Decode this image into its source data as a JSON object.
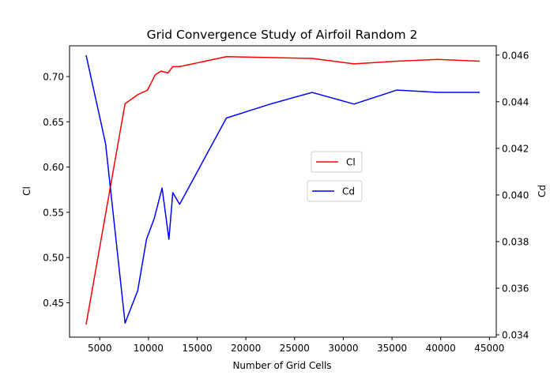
{
  "chart_data": {
    "type": "line",
    "title": "Grid Convergence Study of Airfoil Random 2",
    "xlabel": "Number of Grid Cells",
    "ylabel_left": "Cl",
    "ylabel_right": "Cd",
    "xlim": [
      1900,
      45700
    ],
    "ylim_left": [
      0.412,
      0.734
    ],
    "ylim_right": [
      0.0339,
      0.0464
    ],
    "x_ticks": [
      5000,
      10000,
      15000,
      20000,
      25000,
      30000,
      35000,
      40000,
      45000
    ],
    "y_ticks_left": [
      0.45,
      0.5,
      0.55,
      0.6,
      0.65,
      0.7
    ],
    "y_ticks_right": [
      0.034,
      0.036,
      0.038,
      0.04,
      0.042,
      0.044,
      0.046
    ],
    "grid": false,
    "series": [
      {
        "name": "Cl",
        "axis": "left",
        "color": "#ff0000",
        "points": [
          [
            3600,
            0.426
          ],
          [
            7600,
            0.67
          ],
          [
            8900,
            0.68
          ],
          [
            9900,
            0.685
          ],
          [
            10700,
            0.702
          ],
          [
            11300,
            0.706
          ],
          [
            12000,
            0.704
          ],
          [
            12500,
            0.711
          ],
          [
            13200,
            0.711
          ],
          [
            18000,
            0.722
          ],
          [
            22500,
            0.721
          ],
          [
            26800,
            0.72
          ],
          [
            31100,
            0.714
          ],
          [
            35500,
            0.717
          ],
          [
            39700,
            0.719
          ],
          [
            44000,
            0.717
          ]
        ]
      },
      {
        "name": "Cd",
        "axis": "right",
        "color": "#0000ff",
        "points": [
          [
            3600,
            0.046
          ],
          [
            5600,
            0.0422
          ],
          [
            7600,
            0.0345
          ],
          [
            8900,
            0.0359
          ],
          [
            9800,
            0.0381
          ],
          [
            10600,
            0.039
          ],
          [
            11400,
            0.0403
          ],
          [
            12100,
            0.0381
          ],
          [
            12500,
            0.0401
          ],
          [
            13200,
            0.0396
          ],
          [
            18000,
            0.0433
          ],
          [
            22500,
            0.0439
          ],
          [
            26800,
            0.0444
          ],
          [
            31100,
            0.0439
          ],
          [
            35500,
            0.0445
          ],
          [
            39700,
            0.0444
          ],
          [
            44000,
            0.0444
          ]
        ]
      }
    ]
  }
}
